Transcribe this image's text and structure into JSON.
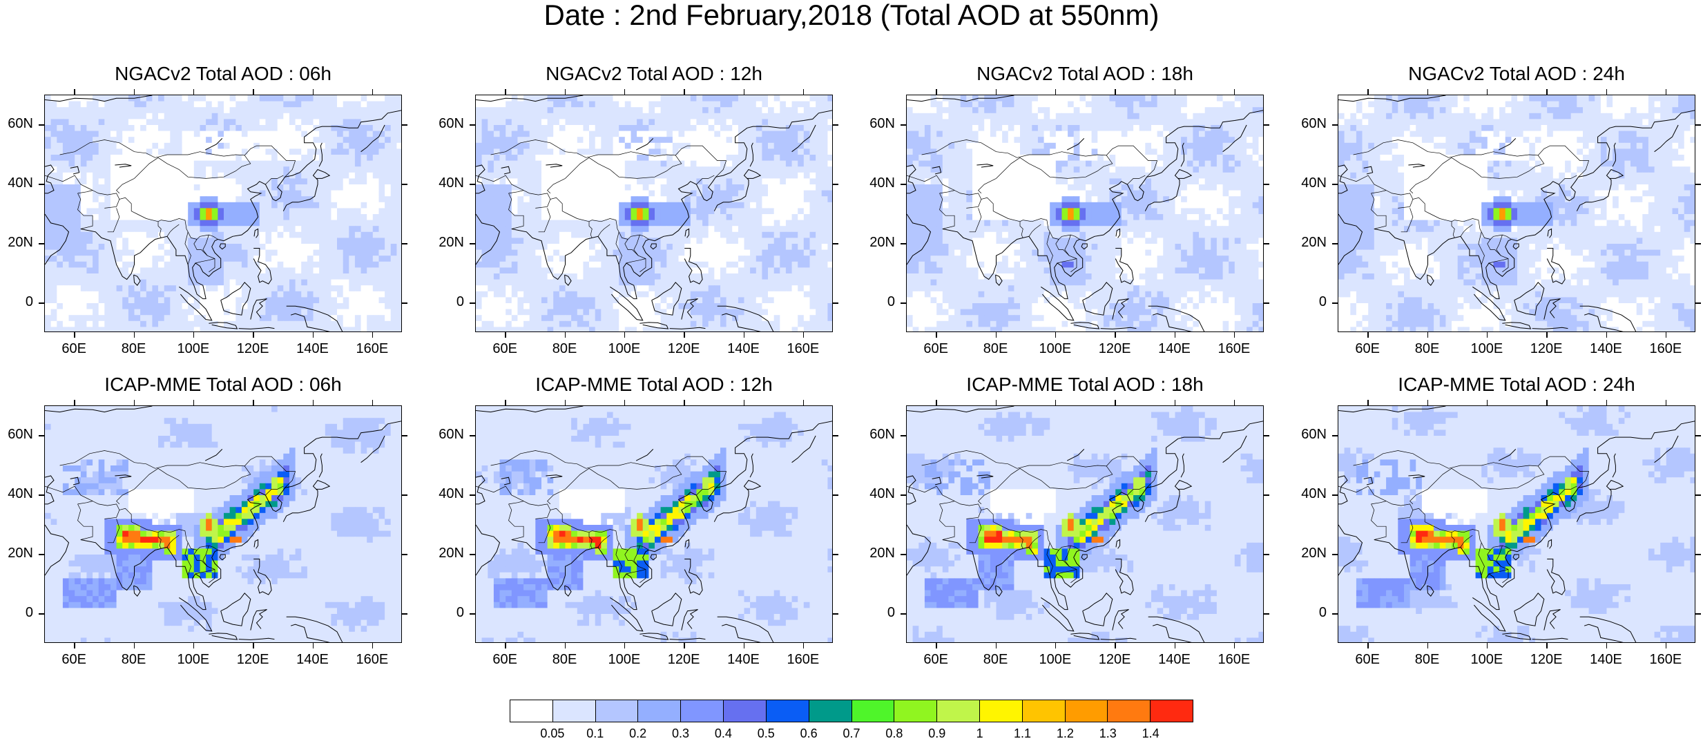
{
  "title": "Date : 2nd February,2018 (Total AOD at 550nm)",
  "lat_labels": [
    "60N",
    "40N",
    "20N",
    "0"
  ],
  "lon_labels": [
    "60E",
    "80E",
    "100E",
    "120E",
    "140E",
    "160E"
  ],
  "panels": [
    {
      "title": "NGACv2 Total AOD : 06h",
      "model": "NGACv2",
      "lead": "06h"
    },
    {
      "title": "NGACv2 Total AOD : 12h",
      "model": "NGACv2",
      "lead": "12h"
    },
    {
      "title": "NGACv2 Total AOD : 18h",
      "model": "NGACv2",
      "lead": "18h"
    },
    {
      "title": "NGACv2 Total AOD : 24h",
      "model": "NGACv2",
      "lead": "24h"
    },
    {
      "title": "ICAP-MME Total AOD : 06h",
      "model": "ICAP-MME",
      "lead": "06h"
    },
    {
      "title": "ICAP-MME Total AOD : 12h",
      "model": "ICAP-MME",
      "lead": "12h"
    },
    {
      "title": "ICAP-MME Total AOD : 18h",
      "model": "ICAP-MME",
      "lead": "18h"
    },
    {
      "title": "ICAP-MME Total AOD : 24h",
      "model": "ICAP-MME",
      "lead": "24h"
    }
  ],
  "colorbar": {
    "labels": [
      "0.05",
      "0.1",
      "0.2",
      "0.3",
      "0.4",
      "0.5",
      "0.6",
      "0.7",
      "0.8",
      "0.9",
      "1",
      "1.1",
      "1.2",
      "1.3",
      "1.4"
    ],
    "colors": [
      "#ffffff",
      "#dbe5ff",
      "#b4c6ff",
      "#94afff",
      "#8096ff",
      "#6670f0",
      "#0a5df5",
      "#009a8a",
      "#4ff52a",
      "#90f520",
      "#c0f54a",
      "#fff500",
      "#ffc400",
      "#ff9c00",
      "#ff7a10",
      "#ff2a10"
    ]
  }
}
